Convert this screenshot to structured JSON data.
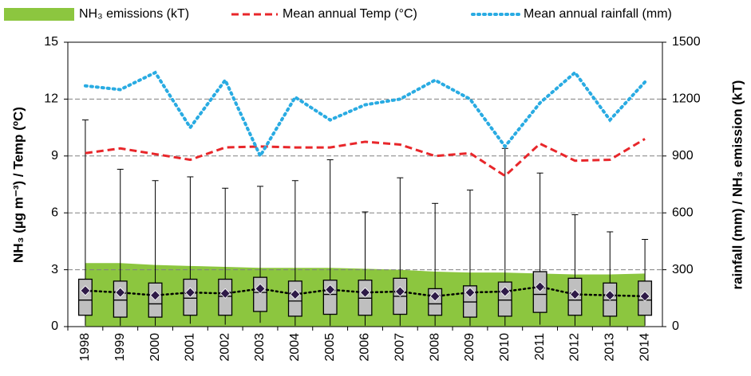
{
  "chart_data": {
    "type": "boxplot",
    "categories": [
      "1998",
      "1999",
      "2000",
      "2001",
      "2002",
      "2003",
      "2004",
      "2005",
      "2006",
      "2007",
      "2008",
      "2009",
      "2010",
      "2011",
      "2012",
      "2013",
      "2014"
    ],
    "y_label": "NH₃ (µg m⁻³) / Temp (ºC)",
    "y2_label": "rainfall (mm) / NH₃ emission (kT)",
    "ylim": [
      0,
      15
    ],
    "yticks": [
      0,
      3,
      6,
      9,
      12,
      15
    ],
    "y2lim": [
      0,
      1500
    ],
    "y2ticks": [
      0,
      300,
      600,
      900,
      1200,
      1500
    ],
    "grid": true,
    "box": {
      "color": "#bfbfbf",
      "mean_color": "#2e1a47",
      "whisker_low": [
        0.05,
        0.05,
        0.05,
        0.15,
        0.1,
        0.2,
        0.05,
        0.05,
        0.05,
        0.05,
        0.05,
        0.05,
        0.05,
        0.1,
        0.05,
        0.05,
        0.05
      ],
      "q1": [
        0.6,
        0.5,
        0.5,
        0.6,
        0.6,
        0.8,
        0.55,
        0.65,
        0.6,
        0.65,
        0.6,
        0.5,
        0.55,
        0.75,
        0.6,
        0.55,
        0.6
      ],
      "median": [
        1.4,
        1.4,
        1.2,
        1.5,
        1.6,
        1.8,
        1.35,
        1.7,
        1.5,
        1.6,
        1.2,
        1.3,
        1.4,
        1.7,
        1.4,
        1.4,
        1.4
      ],
      "q3": [
        2.5,
        2.4,
        2.3,
        2.5,
        2.5,
        2.6,
        2.4,
        2.45,
        2.45,
        2.55,
        2.0,
        2.15,
        2.35,
        2.9,
        2.55,
        2.3,
        2.4
      ],
      "whisker_high": [
        10.9,
        8.3,
        7.7,
        7.9,
        7.3,
        7.4,
        7.7,
        8.8,
        6.05,
        7.85,
        6.5,
        7.2,
        9.4,
        8.1,
        5.9,
        5.0,
        4.6
      ],
      "mean": [
        1.9,
        1.8,
        1.65,
        1.8,
        1.75,
        2.0,
        1.7,
        1.95,
        1.8,
        1.85,
        1.6,
        1.8,
        1.85,
        2.1,
        1.7,
        1.65,
        1.6
      ]
    },
    "series": [
      {
        "name": "NH₃ emissions (kT)",
        "type": "area",
        "axis": "y2",
        "color": "#8cc63f",
        "values": [
          335,
          335,
          325,
          320,
          315,
          310,
          310,
          310,
          305,
          300,
          290,
          285,
          285,
          280,
          275,
          275,
          280
        ]
      },
      {
        "name": "Mean annual Temp (°C)",
        "type": "line",
        "style": "dashed",
        "color": "#e8262a",
        "values": [
          9.15,
          9.4,
          9.1,
          8.8,
          9.45,
          9.5,
          9.45,
          9.45,
          9.75,
          9.6,
          9.0,
          9.15,
          7.95,
          9.65,
          8.75,
          8.8,
          9.9
        ]
      },
      {
        "name": "Mean annual rainfall (mm)",
        "type": "line",
        "style": "dotted",
        "axis": "y2",
        "color": "#29abe2",
        "values": [
          1270,
          1250,
          1340,
          1050,
          1300,
          900,
          1210,
          1090,
          1170,
          1200,
          1300,
          1200,
          950,
          1180,
          1340,
          1090,
          1290
        ]
      }
    ]
  }
}
